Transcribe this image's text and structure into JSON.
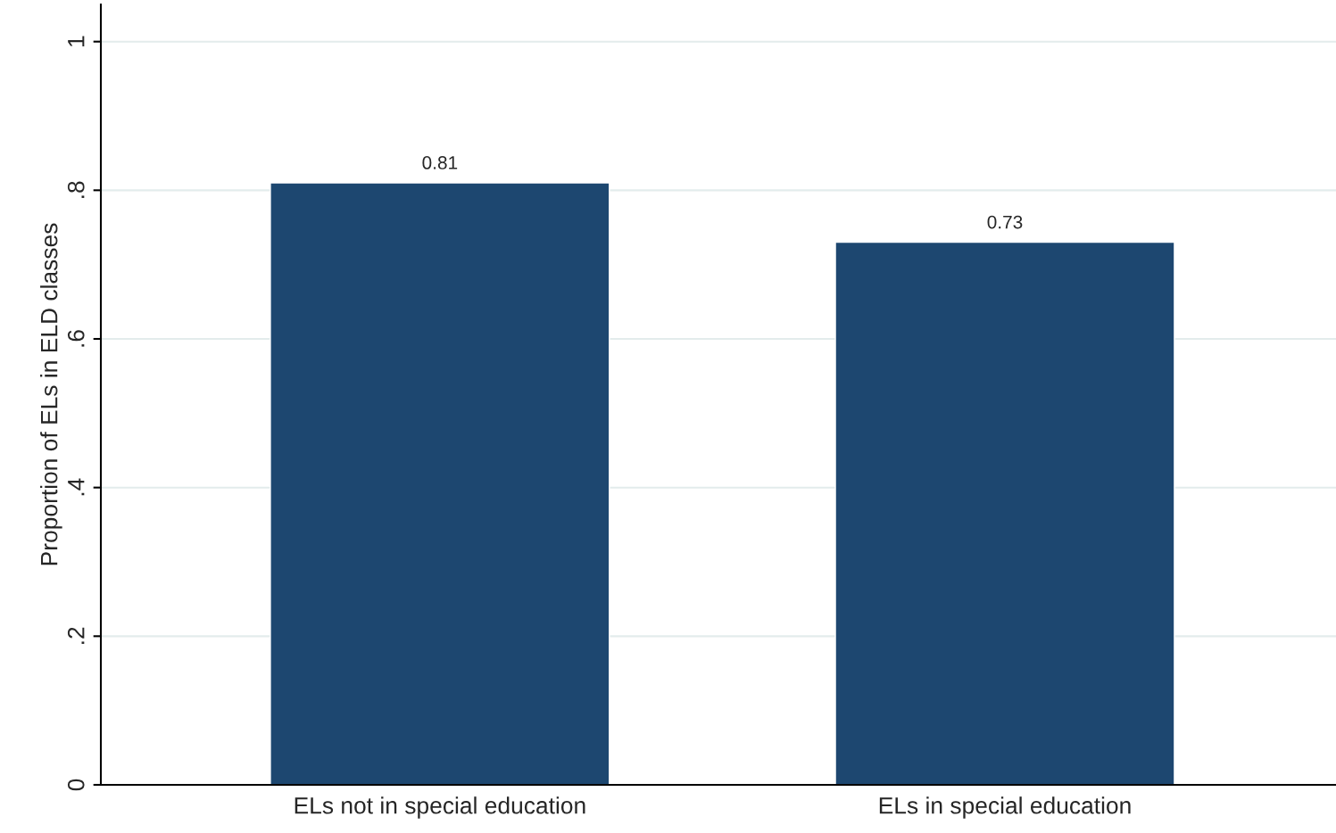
{
  "chart_data": {
    "type": "bar",
    "ylabel": "Proportion of ELs in ELD classes",
    "categories": [
      "ELs not in special education",
      "ELs in special education"
    ],
    "values": [
      0.81,
      0.73
    ],
    "color": "#1d4770",
    "ylim": [
      0,
      1.05
    ],
    "yticks": [
      0,
      {
        "value": 0.2,
        "label": ".2"
      },
      {
        "value": 0.4,
        "label": ".4"
      },
      {
        "value": 0.6,
        "label": ".6"
      },
      {
        "value": 0.8,
        "label": ".8"
      },
      1
    ],
    "grid": "y",
    "data_labels": true
  }
}
